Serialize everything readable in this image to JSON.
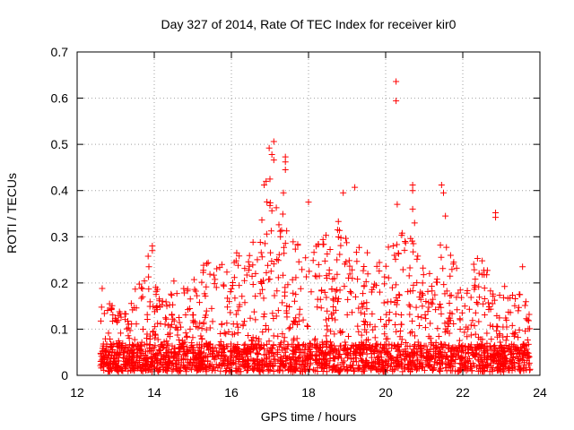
{
  "chart_data": {
    "type": "scatter",
    "title": "Day 327 of 2014, Rate Of TEC Index for receiver kir0",
    "xlabel": "GPS time / hours",
    "ylabel": "ROTI / TECUs",
    "xlim": [
      12,
      24
    ],
    "ylim": [
      0,
      0.7
    ],
    "xticks": [
      "12",
      "14",
      "16",
      "18",
      "20",
      "22",
      "24"
    ],
    "yticks": [
      "0",
      "0.1",
      "0.2",
      "0.3",
      "0.4",
      "0.5",
      "0.6",
      "0.7"
    ],
    "grid": true,
    "marker": "+",
    "series_color": "#ff0000",
    "highlights": [
      {
        "x": 20.27,
        "y": 0.636
      },
      {
        "x": 20.27,
        "y": 0.594
      },
      {
        "x": 17.1,
        "y": 0.506
      },
      {
        "x": 16.98,
        "y": 0.492
      },
      {
        "x": 17.05,
        "y": 0.478
      },
      {
        "x": 17.4,
        "y": 0.473
      },
      {
        "x": 17.4,
        "y": 0.462
      },
      {
        "x": 17.4,
        "y": 0.445
      },
      {
        "x": 17.1,
        "y": 0.466
      },
      {
        "x": 16.9,
        "y": 0.42
      },
      {
        "x": 17.0,
        "y": 0.425
      },
      {
        "x": 16.85,
        "y": 0.412
      },
      {
        "x": 17.35,
        "y": 0.395
      },
      {
        "x": 19.2,
        "y": 0.407
      },
      {
        "x": 18.9,
        "y": 0.395
      },
      {
        "x": 18.0,
        "y": 0.375
      },
      {
        "x": 20.7,
        "y": 0.412
      },
      {
        "x": 20.7,
        "y": 0.4
      },
      {
        "x": 21.45,
        "y": 0.412
      },
      {
        "x": 21.5,
        "y": 0.395
      },
      {
        "x": 21.55,
        "y": 0.345
      },
      {
        "x": 22.85,
        "y": 0.352
      },
      {
        "x": 22.85,
        "y": 0.342
      },
      {
        "x": 20.3,
        "y": 0.37
      },
      {
        "x": 13.95,
        "y": 0.28
      },
      {
        "x": 13.95,
        "y": 0.27
      },
      {
        "x": 12.65,
        "y": 0.188
      },
      {
        "x": 23.55,
        "y": 0.235
      },
      {
        "x": 20.7,
        "y": 0.36
      },
      {
        "x": 20.75,
        "y": 0.33
      }
    ],
    "envelope": [
      {
        "x": 12.6,
        "y": 0.14
      },
      {
        "x": 12.8,
        "y": 0.16
      },
      {
        "x": 13.0,
        "y": 0.13
      },
      {
        "x": 13.3,
        "y": 0.14
      },
      {
        "x": 13.5,
        "y": 0.18
      },
      {
        "x": 13.7,
        "y": 0.22
      },
      {
        "x": 13.9,
        "y": 0.27
      },
      {
        "x": 14.1,
        "y": 0.18
      },
      {
        "x": 14.3,
        "y": 0.15
      },
      {
        "x": 14.5,
        "y": 0.2
      },
      {
        "x": 14.8,
        "y": 0.19
      },
      {
        "x": 15.0,
        "y": 0.2
      },
      {
        "x": 15.3,
        "y": 0.24
      },
      {
        "x": 15.6,
        "y": 0.24
      },
      {
        "x": 15.9,
        "y": 0.25
      },
      {
        "x": 16.2,
        "y": 0.26
      },
      {
        "x": 16.5,
        "y": 0.28
      },
      {
        "x": 16.8,
        "y": 0.35
      },
      {
        "x": 17.0,
        "y": 0.42
      },
      {
        "x": 17.3,
        "y": 0.35
      },
      {
        "x": 17.6,
        "y": 0.32
      },
      {
        "x": 17.9,
        "y": 0.3
      },
      {
        "x": 18.2,
        "y": 0.34
      },
      {
        "x": 18.5,
        "y": 0.3
      },
      {
        "x": 18.8,
        "y": 0.33
      },
      {
        "x": 19.1,
        "y": 0.3
      },
      {
        "x": 19.4,
        "y": 0.28
      },
      {
        "x": 19.7,
        "y": 0.24
      },
      {
        "x": 20.0,
        "y": 0.26
      },
      {
        "x": 20.3,
        "y": 0.3
      },
      {
        "x": 20.6,
        "y": 0.3
      },
      {
        "x": 20.9,
        "y": 0.25
      },
      {
        "x": 21.2,
        "y": 0.22
      },
      {
        "x": 21.5,
        "y": 0.3
      },
      {
        "x": 21.8,
        "y": 0.24
      },
      {
        "x": 22.1,
        "y": 0.2
      },
      {
        "x": 22.4,
        "y": 0.26
      },
      {
        "x": 22.7,
        "y": 0.22
      },
      {
        "x": 23.0,
        "y": 0.2
      },
      {
        "x": 23.3,
        "y": 0.17
      },
      {
        "x": 23.6,
        "y": 0.2
      },
      {
        "x": 23.75,
        "y": 0.12
      }
    ],
    "sampled_count": 2600
  }
}
